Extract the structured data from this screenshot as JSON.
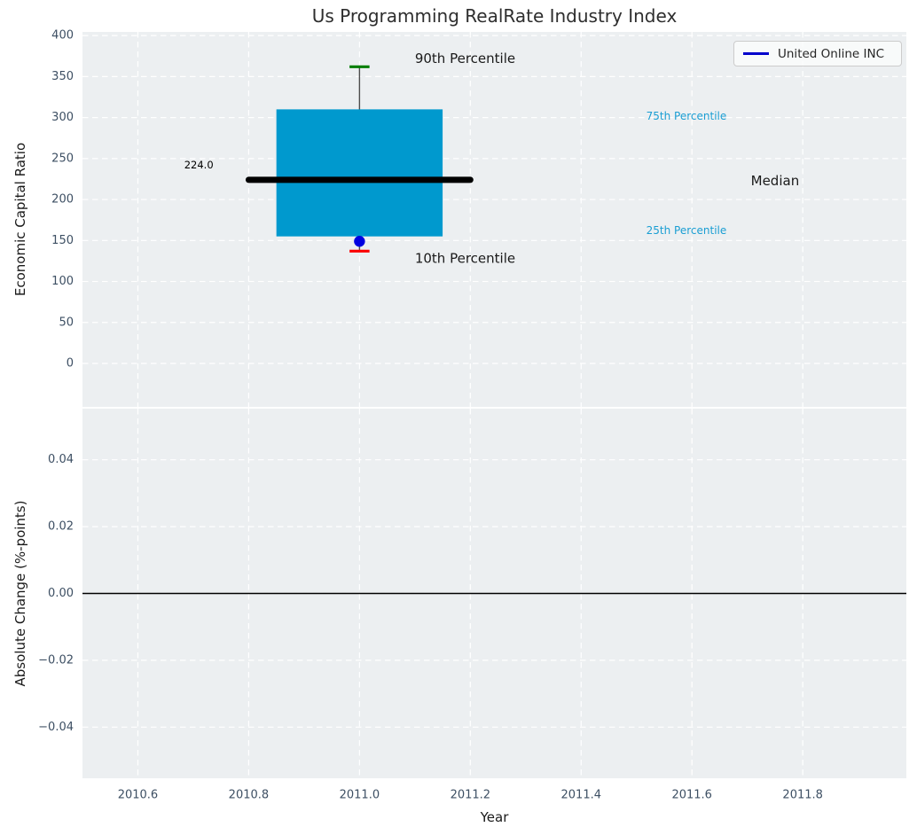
{
  "figure": {
    "title": "Us Programming RealRate Industry Index"
  },
  "legend": {
    "label": "United Online INC"
  },
  "colors": {
    "axes_background": "#eceff1",
    "grid": "#ffffff",
    "box_fill": "#0099ce",
    "median_line": "#000000",
    "whisker": "#4d4d4d",
    "cap_90th": "#007d00",
    "cap_10th": "#fb0000",
    "company_dot": "#0000e0",
    "legend_line": "#0000cc",
    "percentile_label": "#1a9ed3",
    "tick_label": "#3d4f63",
    "text": "#1a1a1a",
    "zero_line": "#000000"
  },
  "chart_data": {
    "type": "box",
    "title": "Us Programming RealRate Industry Index",
    "grid": "on",
    "legend_position": "upper right",
    "x_axis": {
      "label": "Year",
      "xlim": [
        2010.5,
        2011.987
      ],
      "ticks": [
        2010.6,
        2010.8,
        2011.0,
        2011.2,
        2011.4,
        2011.6,
        2011.8
      ],
      "tick_labels": [
        "2010.6",
        "2010.8",
        "2011.0",
        "2011.2",
        "2011.4",
        "2011.6",
        "2011.8"
      ]
    },
    "panels": [
      {
        "ylabel": "Economic Capital Ratio",
        "ylim": [
          -53,
          404.5
        ],
        "yticks": [
          400,
          350,
          300,
          250,
          200,
          150,
          100,
          50,
          0
        ],
        "ytick_labels": [
          "400",
          "350",
          "300",
          "250",
          "200",
          "150",
          "100",
          "50",
          "0"
        ]
      },
      {
        "ylabel": "Absolute Change (%-points)",
        "ylim": [
          -0.0553,
          0.0553
        ],
        "yticks": [
          0.04,
          0.02,
          0,
          -0.02,
          -0.04
        ],
        "ytick_labels": [
          "0.04",
          "0.02",
          "0.00",
          "−0.02",
          "−0.04"
        ],
        "zero_line_y": 0
      }
    ],
    "box_series": {
      "panel": 0,
      "year": 2011.0,
      "p10": 137,
      "p25": 155,
      "median": 224.0,
      "p75": 310,
      "p90": 362,
      "box_half_width_years": 0.15,
      "median_half_width_years": 0.2,
      "cap_half_width_years": 0.018
    },
    "company_point": {
      "name": "United Online INC",
      "panel": 0,
      "year": 2011.0,
      "value": 149
    },
    "annotations": [
      {
        "text": "90th Percentile",
        "panel": 0,
        "x": 2011.1,
        "y": 372,
        "size": 15,
        "color": "#1a1a1a",
        "anchor": "start"
      },
      {
        "text": "10th Percentile",
        "panel": 0,
        "x": 2011.1,
        "y": 128,
        "size": 15,
        "color": "#1a1a1a",
        "anchor": "start"
      },
      {
        "text": "224.0",
        "panel": 0,
        "x": 2010.71,
        "y": 242,
        "size": 11.5,
        "color": "#000000",
        "anchor": "middle"
      },
      {
        "text": "75th Percentile",
        "panel": 0,
        "x": 2011.59,
        "y": 302,
        "size": 12,
        "color": "#1a9ed3",
        "anchor": "middle"
      },
      {
        "text": "Median",
        "panel": 0,
        "x": 2011.75,
        "y": 223,
        "size": 15,
        "color": "#1a1a1a",
        "anchor": "middle"
      },
      {
        "text": "25th Percentile",
        "panel": 0,
        "x": 2011.59,
        "y": 162,
        "size": 12,
        "color": "#1a9ed3",
        "anchor": "middle"
      }
    ]
  }
}
